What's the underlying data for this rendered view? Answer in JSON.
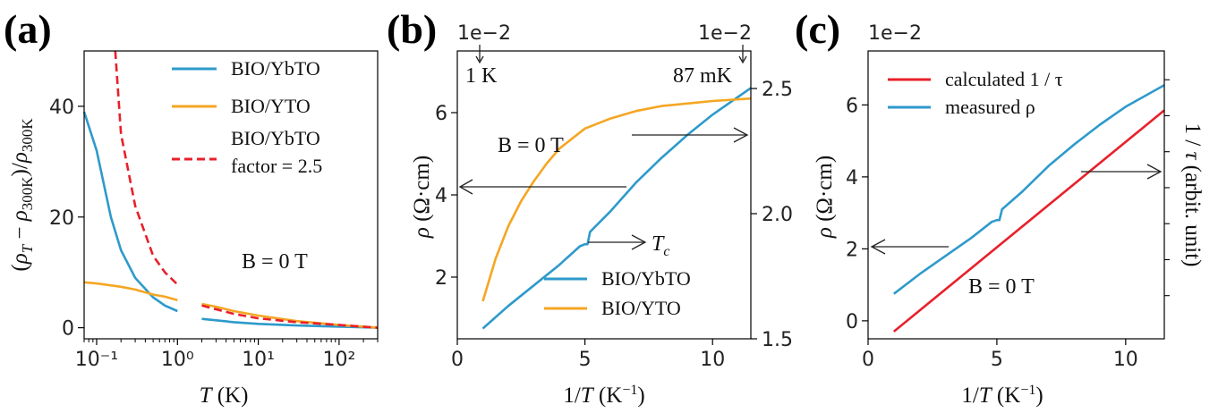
{
  "chart_data": [
    {
      "type": "line",
      "panel_label": "(a)",
      "xlabel": "T (K)",
      "ylabel": "(ρT − ρ300K)/ρ300K",
      "xscale": "log",
      "xlim": [
        0.07,
        300
      ],
      "ylim": [
        -2,
        50
      ],
      "xticks": [
        "10⁻¹",
        "10⁰",
        "10¹",
        "10²"
      ],
      "yticks": [
        "0",
        "20",
        "40"
      ],
      "annotation": "B = 0 T",
      "legend_position": "top-right",
      "series": [
        {
          "name": "BIO/YbTO",
          "color": "#2e9acb",
          "style": "solid",
          "x": [
            0.07,
            0.1,
            0.15,
            0.2,
            0.3,
            0.5,
            0.7,
            1.0
          ],
          "y": [
            39,
            32,
            20,
            14,
            9,
            5.5,
            4,
            3
          ]
        },
        {
          "name": "BIO/YbTO",
          "color": "#2e9acb",
          "style": "solid",
          "x": [
            2,
            5,
            10,
            30,
            100,
            300
          ],
          "y": [
            1.6,
            1.0,
            0.7,
            0.4,
            0.2,
            0
          ]
        },
        {
          "name": "BIO/YTO",
          "color": "#f5a623",
          "style": "solid",
          "x": [
            0.07,
            0.1,
            0.2,
            0.3,
            0.5,
            0.7,
            1.0
          ],
          "y": [
            8.2,
            8.0,
            7.4,
            6.9,
            6.0,
            5.6,
            5.0
          ]
        },
        {
          "name": "BIO/YTO",
          "color": "#f5a623",
          "style": "solid",
          "x": [
            2,
            3,
            5,
            10,
            30,
            100,
            300
          ],
          "y": [
            4.3,
            3.8,
            3.0,
            2.2,
            1.2,
            0.5,
            0
          ]
        },
        {
          "name": "BIO/YbTO factor = 2.5",
          "color": "#e8202a",
          "style": "dashed",
          "x": [
            0.17,
            0.2,
            0.3,
            0.5,
            0.7,
            1.0
          ],
          "y": [
            50,
            35,
            22,
            13,
            10,
            7.8
          ]
        },
        {
          "name": "BIO/YbTO factor = 2.5",
          "color": "#e8202a",
          "style": "dashed",
          "x": [
            2,
            5,
            10,
            30,
            100,
            300
          ],
          "y": [
            4.0,
            2.5,
            1.7,
            1.0,
            0.5,
            0
          ]
        }
      ],
      "legend": [
        "BIO/YbTO",
        "BIO/YTO",
        "BIO/YbTO",
        "factor = 2.5"
      ]
    },
    {
      "type": "line",
      "panel_label": "(b)",
      "xlabel": "1/T (K⁻¹)",
      "ylabel": "ρ (Ω·cm)",
      "offset_left": "1e−2",
      "offset_right": "1e−2",
      "xlim": [
        0,
        11.5
      ],
      "ylim": [
        0.5,
        7.5
      ],
      "ylim_right": [
        1.5,
        2.65
      ],
      "xticks": [
        "0",
        "5",
        "10"
      ],
      "yticks": [
        "2",
        "4",
        "6"
      ],
      "yticks_right": [
        "1.5",
        "2.0",
        "2.5"
      ],
      "annotations": [
        "B = 0 T",
        "1 K",
        "87 mK",
        "Tc"
      ],
      "legend_position": "lower-right",
      "legend": [
        "BIO/YbTO",
        "BIO/YTO"
      ],
      "series": [
        {
          "name": "BIO/YbTO",
          "axis": "left",
          "color": "#2e9acb",
          "x": [
            1.0,
            2.0,
            3.0,
            4.0,
            4.8,
            5.0,
            5.1,
            5.2,
            6.0,
            7.0,
            8.0,
            9.0,
            10.0,
            11.5
          ],
          "y": [
            0.75,
            1.3,
            1.8,
            2.3,
            2.75,
            2.8,
            2.8,
            3.1,
            3.6,
            4.3,
            4.9,
            5.45,
            5.95,
            6.6
          ]
        },
        {
          "name": "BIO/YTO",
          "axis": "right",
          "color": "#f5a623",
          "x": [
            1.0,
            1.5,
            2.0,
            2.5,
            3.0,
            3.5,
            4.0,
            5.0,
            6.0,
            7.0,
            8.0,
            9.0,
            10.0,
            11.5
          ],
          "y": [
            1.65,
            1.82,
            1.95,
            2.05,
            2.13,
            2.2,
            2.26,
            2.34,
            2.38,
            2.41,
            2.43,
            2.44,
            2.45,
            2.46
          ]
        }
      ]
    },
    {
      "type": "line",
      "panel_label": "(c)",
      "xlabel": "1/T (K⁻¹)",
      "ylabel": "ρ (Ω·cm)",
      "ylabel_right": "1 / τ (arbit. unit)",
      "offset_left": "1e−2",
      "xlim": [
        0,
        11.5
      ],
      "ylim": [
        -0.5,
        7.5
      ],
      "xticks": [
        "0",
        "5",
        "10"
      ],
      "yticks": [
        "0",
        "2",
        "4",
        "6"
      ],
      "annotation": "B = 0 T",
      "legend_position": "top-left",
      "legend": [
        "calculated 1 / τ",
        "measured ρ"
      ],
      "series": [
        {
          "name": "calculated 1 / τ",
          "color": "#e8202a",
          "x": [
            1.0,
            11.5
          ],
          "y": [
            -0.3,
            5.85
          ]
        },
        {
          "name": "measured ρ",
          "color": "#2e9acb",
          "x": [
            1.0,
            2.0,
            3.0,
            4.0,
            4.8,
            5.0,
            5.1,
            5.2,
            6.0,
            7.0,
            8.0,
            9.0,
            10.0,
            11.5
          ],
          "y": [
            0.75,
            1.3,
            1.8,
            2.3,
            2.75,
            2.8,
            2.8,
            3.1,
            3.6,
            4.3,
            4.9,
            5.45,
            5.95,
            6.55
          ]
        }
      ]
    }
  ]
}
